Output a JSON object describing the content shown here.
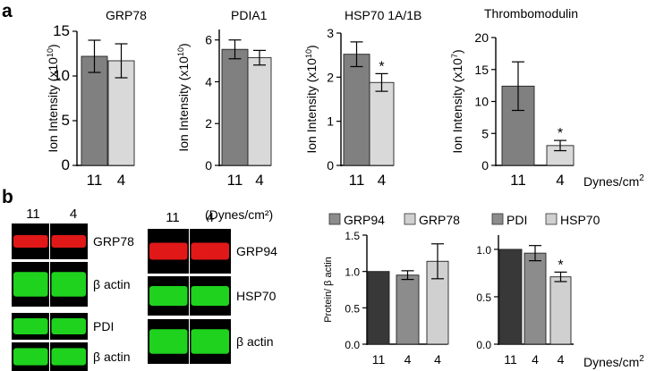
{
  "panel_labels": {
    "a": "a",
    "b": "b"
  },
  "colors": {
    "dark": "#808080",
    "light": "#d9d9d9",
    "black": "#383838",
    "mid": "#8c8c8c",
    "pale": "#d0d0d0",
    "blot_red": "#e01818",
    "blot_green": "#1ed21e"
  },
  "units": {
    "top": "Dynes/cm",
    "bottom": "Dynes/cm",
    "blot": "(Dynes/cm²)"
  },
  "units_sup": "2",
  "chart_data": [
    {
      "type": "bar",
      "title": "GRP78",
      "ylabel": "Ion Intensity (x10",
      "ylabel_sup": "10",
      "ylabel_end": ")",
      "categories": [
        "11",
        "4"
      ],
      "values": [
        12.2,
        11.7
      ],
      "errors": [
        1.8,
        1.9
      ],
      "ylim": [
        0,
        15
      ],
      "yticks": [
        0,
        5,
        10,
        15
      ],
      "colors": [
        "dark",
        "light"
      ],
      "stars": [
        "",
        ""
      ]
    },
    {
      "type": "bar",
      "title": "PDIA1",
      "ylabel": "Ion Intensity (x10",
      "ylabel_sup": "10",
      "ylabel_end": ")",
      "categories": [
        "11",
        "4"
      ],
      "values": [
        5.55,
        5.15
      ],
      "errors": [
        0.45,
        0.35
      ],
      "ylim": [
        0,
        6.5
      ],
      "yticks": [
        0,
        2,
        4,
        6
      ],
      "colors": [
        "dark",
        "light"
      ],
      "stars": [
        "",
        ""
      ]
    },
    {
      "type": "bar",
      "title": "HSP70 1A/1B",
      "ylabel": "Ion Intensity (x10",
      "ylabel_sup": "10",
      "ylabel_end": ")",
      "categories": [
        "11",
        "4"
      ],
      "values": [
        2.52,
        1.88
      ],
      "errors": [
        0.28,
        0.2
      ],
      "ylim": [
        0,
        3
      ],
      "yticks": [
        0,
        1,
        2,
        3
      ],
      "colors": [
        "dark",
        "light"
      ],
      "stars": [
        "",
        "*"
      ]
    },
    {
      "type": "bar",
      "title": "Thrombomodulin",
      "ylabel": "Ion Intensity (x10",
      "ylabel_sup": "7",
      "ylabel_end": ")",
      "categories": [
        "11",
        "4"
      ],
      "values": [
        12.4,
        3.1
      ],
      "errors": [
        3.8,
        0.8
      ],
      "ylim": [
        0,
        20
      ],
      "yticks": [
        0,
        5,
        10,
        15,
        20
      ],
      "colors": [
        "dark",
        "light"
      ],
      "stars": [
        "",
        "*"
      ]
    },
    {
      "type": "bar",
      "title": "",
      "ylabel": "Protein/ β actin",
      "legend": [
        {
          "name": "GRP94",
          "color": "mid"
        },
        {
          "name": "GRP78",
          "color": "pale"
        }
      ],
      "categories": [
        "11",
        "4",
        "4"
      ],
      "values": [
        1.0,
        0.95,
        1.14
      ],
      "errors": [
        0,
        0.06,
        0.24
      ],
      "ylim": [
        0,
        1.5
      ],
      "yticks": [
        0,
        0.5,
        1.0,
        1.5
      ],
      "ytick_labels": [
        "0.0",
        "0.5",
        "1.0",
        "1.5"
      ],
      "colors": [
        "black",
        "mid",
        "pale"
      ],
      "stars": [
        "",
        "",
        ""
      ]
    },
    {
      "type": "bar",
      "title": "",
      "ylabel": "",
      "legend": [
        {
          "name": "PDI",
          "color": "mid"
        },
        {
          "name": "HSP70",
          "color": "pale"
        }
      ],
      "categories": [
        "11",
        "4",
        "4"
      ],
      "values": [
        1.0,
        0.96,
        0.71
      ],
      "errors": [
        0,
        0.08,
        0.05
      ],
      "ylim": [
        0,
        1.15
      ],
      "yticks": [
        0,
        0.5,
        1.0
      ],
      "ytick_labels": [
        "0.0",
        "0.5",
        "1.0"
      ],
      "colors": [
        "black",
        "mid",
        "pale"
      ],
      "stars": [
        "",
        "",
        "*"
      ]
    }
  ],
  "blots": {
    "left": {
      "lanes": [
        "11",
        "4"
      ],
      "rows": [
        {
          "label": "GRP78",
          "color": "blot_red"
        },
        {
          "label": "β actin",
          "color": "blot_green"
        },
        {
          "label": "PDI",
          "color": "blot_green"
        },
        {
          "label": "β actin",
          "color": "blot_green"
        }
      ]
    },
    "right": {
      "lanes": [
        "11",
        "4"
      ],
      "rows": [
        {
          "label": "GRP94",
          "color": "blot_red"
        },
        {
          "label": "HSP70",
          "color": "blot_green"
        },
        {
          "label": "β actin",
          "color": "blot_green"
        }
      ]
    }
  }
}
